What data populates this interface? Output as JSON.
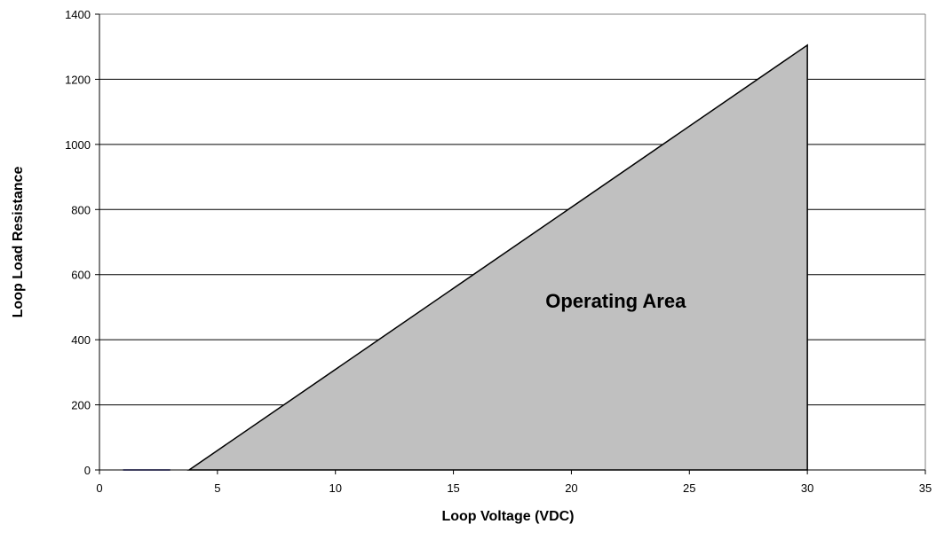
{
  "chart_data": {
    "type": "area",
    "title": "",
    "xlabel": "Loop Voltage (VDC)",
    "ylabel": "Loop Load Resistance",
    "xlim": [
      0,
      35
    ],
    "ylim": [
      0,
      1400
    ],
    "xticks": [
      0,
      5,
      10,
      15,
      20,
      25,
      30,
      35
    ],
    "yticks": [
      0,
      200,
      400,
      600,
      800,
      1000,
      1200,
      1400
    ],
    "grid": "horizontal",
    "legend": "none",
    "series": [
      {
        "kind": "area",
        "points": [
          [
            3.8,
            0
          ],
          [
            30,
            1305
          ],
          [
            30,
            0
          ]
        ],
        "fill": "#c0c0c0",
        "stroke": "#000000"
      },
      {
        "kind": "line",
        "points": [
          [
            1,
            0
          ],
          [
            3,
            0
          ]
        ],
        "stroke": "#000080"
      }
    ],
    "annotations": [
      {
        "text": "Operating Area",
        "x": 21.5,
        "y": 520
      }
    ]
  }
}
